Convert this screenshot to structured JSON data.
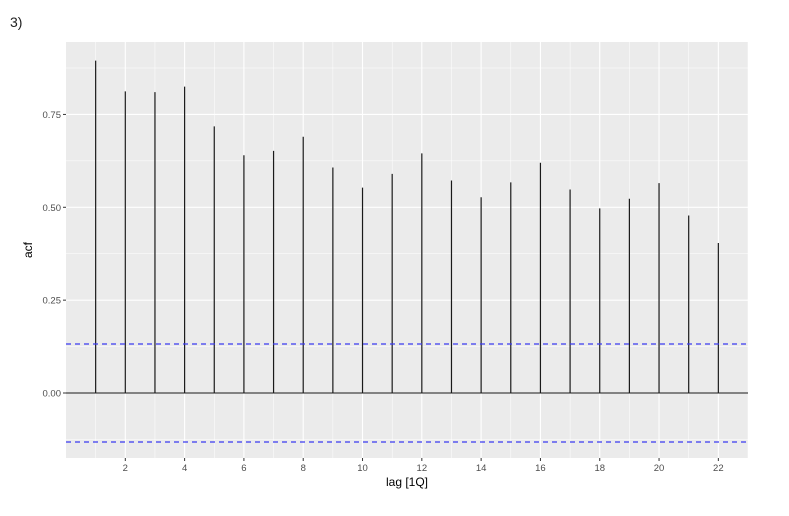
{
  "figure_label": "3)",
  "chart_data": {
    "type": "bar",
    "xlabel": "lag [1Q]",
    "ylabel": "acf",
    "x": [
      1,
      2,
      3,
      4,
      5,
      6,
      7,
      8,
      9,
      10,
      11,
      12,
      13,
      14,
      15,
      16,
      17,
      18,
      19,
      20,
      21,
      22
    ],
    "values": [
      0.895,
      0.812,
      0.81,
      0.825,
      0.718,
      0.64,
      0.652,
      0.69,
      0.607,
      0.553,
      0.59,
      0.645,
      0.572,
      0.527,
      0.567,
      0.62,
      0.548,
      0.497,
      0.523,
      0.565,
      0.478,
      0.404
    ],
    "xlim": [
      0,
      23
    ],
    "ylim": [
      -0.175,
      0.945
    ],
    "x_ticks": [
      2,
      4,
      6,
      8,
      10,
      12,
      14,
      16,
      18,
      20,
      22
    ],
    "y_ticks": [
      0,
      0.25,
      0.5,
      0.75
    ],
    "y_tick_labels": [
      "0.00",
      "0.25",
      "0.50",
      "0.75"
    ],
    "confidence_bound": 0.132,
    "grid": true,
    "colors": {
      "panel": "#ebebeb",
      "grid_major": "#ffffff",
      "bar": "#1a1a1a",
      "confidence_line": "#3b3bf0"
    }
  }
}
